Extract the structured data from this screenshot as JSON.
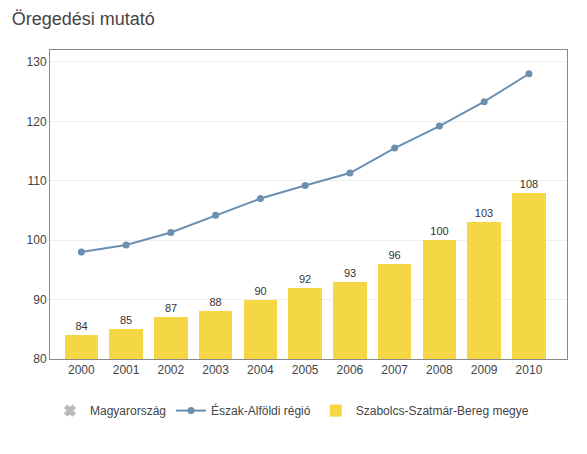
{
  "chart_data": {
    "type": "bar",
    "title": "Öregedési mutató",
    "x": [
      2000,
      2001,
      2002,
      2003,
      2004,
      2005,
      2006,
      2007,
      2008,
      2009,
      2010
    ],
    "xlim": [
      1999.3,
      2010.85
    ],
    "xticks": [
      2000,
      2001,
      2002,
      2003,
      2004,
      2005,
      2006,
      2007,
      2008,
      2009,
      2010
    ],
    "ylim": [
      80,
      132
    ],
    "yticks": [
      80,
      90,
      100,
      110,
      120,
      130
    ],
    "grid": true,
    "legend": "bottom",
    "series": [
      {
        "name": "Magyarország",
        "type": "scatter",
        "marker": "x",
        "color": "#BBBBBB",
        "values": [
          null,
          null,
          null,
          null,
          null,
          null,
          null,
          null,
          null,
          null,
          null
        ]
      },
      {
        "name": "Észak-Alföldi régió",
        "type": "line",
        "marker": "circle",
        "color": "#6B8FAF",
        "values": [
          98.0,
          99.2,
          101.3,
          104.2,
          107.0,
          109.2,
          111.3,
          115.5,
          119.2,
          123.3,
          128.0
        ]
      },
      {
        "name": "Szabolcs-Szatmár-Bereg megye",
        "type": "bar",
        "color": "#F5D645",
        "data_labels": true,
        "values": [
          84,
          85,
          87,
          88,
          90,
          92,
          93,
          96,
          100,
          103,
          108
        ]
      }
    ]
  }
}
